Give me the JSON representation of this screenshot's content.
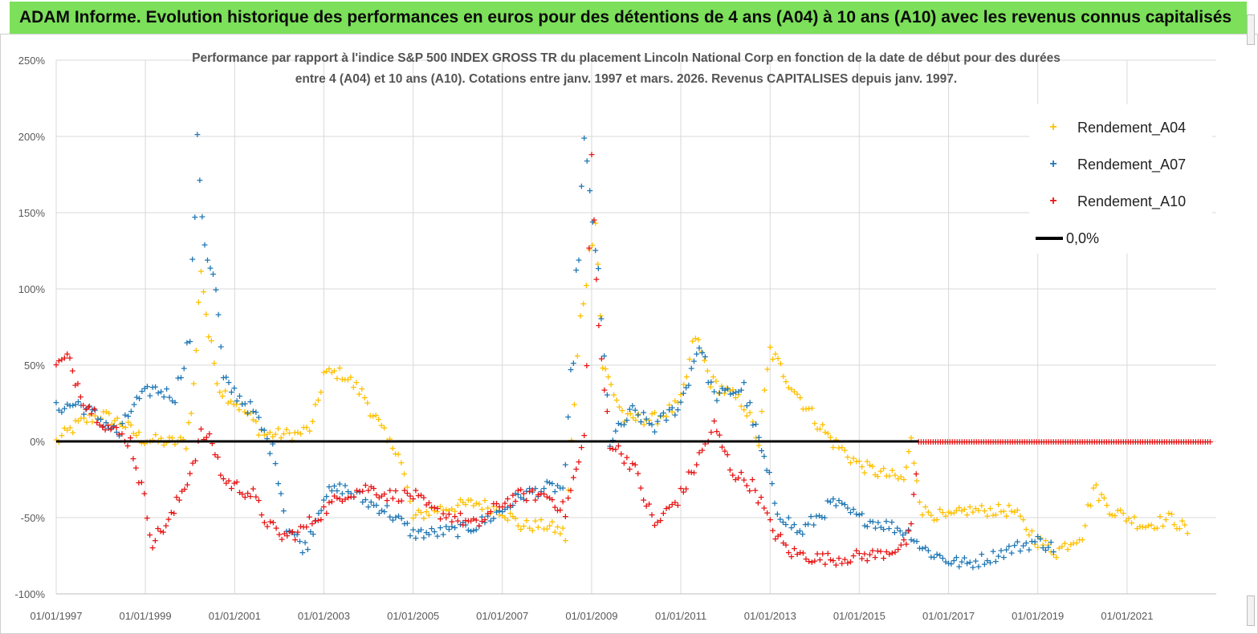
{
  "header": {
    "title": "ADAM Informe. Evolution historique des performances en euros pour des détentions de 4 ans (A04) à 10 ans (A10) avec les revenus connus capitalisés"
  },
  "chart_data": {
    "type": "scatter",
    "title_line1": "Performance par rapport à l'indice S&P 500 INDEX GROSS TR  du placement Lincoln National Corp en fonction de la date de début pour des durées",
    "title_line2": "entre 4 (A04) et 10 ans (A10). Cotations entre janv. 1997 et mars. 2026. Revenus CAPITALISES depuis janv. 1997.",
    "xlabel": "",
    "ylabel": "",
    "x_ticks": [
      "01/01/1997",
      "01/01/1999",
      "01/01/2001",
      "01/01/2003",
      "01/01/2005",
      "01/01/2007",
      "01/01/2009",
      "01/01/2011",
      "01/01/2013",
      "01/01/2015",
      "01/01/2017",
      "01/01/2019",
      "01/01/2021"
    ],
    "y_ticks": [
      "250%",
      "200%",
      "150%",
      "100%",
      "50%",
      "0%",
      "-50%",
      "-100%"
    ],
    "ylim": [
      -1.0,
      2.5
    ],
    "xlim": [
      "1997-01-01",
      "2023-01-01"
    ],
    "grid": true,
    "legend_position": "top-right",
    "series": [
      {
        "name": "Rendement_A04",
        "color": "#ffc000",
        "points": [
          [
            "1997-01",
            0.0
          ],
          [
            "1997-07",
            0.12
          ],
          [
            "1998-01",
            0.18
          ],
          [
            "1998-07",
            0.12
          ],
          [
            "1998-12",
            0.02
          ],
          [
            "1999-06",
            0.0
          ],
          [
            "1999-12",
            0.0
          ],
          [
            "2000-02",
            0.35
          ],
          [
            "2000-04",
            1.15
          ],
          [
            "2000-06",
            0.7
          ],
          [
            "2000-09",
            0.35
          ],
          [
            "2001-03",
            0.22
          ],
          [
            "2001-09",
            0.05
          ],
          [
            "2002-06",
            0.05
          ],
          [
            "2002-10",
            0.1
          ],
          [
            "2003-01",
            0.45
          ],
          [
            "2003-06",
            0.45
          ],
          [
            "2003-12",
            0.3
          ],
          [
            "2004-06",
            0.0
          ],
          [
            "2004-09",
            -0.05
          ],
          [
            "2005-01",
            -0.5
          ],
          [
            "2005-06",
            -0.45
          ],
          [
            "2006-01",
            -0.42
          ],
          [
            "2006-06",
            -0.4
          ],
          [
            "2007-01",
            -0.45
          ],
          [
            "2007-06",
            -0.55
          ],
          [
            "2008-01",
            -0.55
          ],
          [
            "2008-06",
            -0.6
          ],
          [
            "2008-10",
            0.8
          ],
          [
            "2009-02",
            1.5
          ],
          [
            "2009-04",
            0.5
          ],
          [
            "2009-10",
            0.15
          ],
          [
            "2010-06",
            0.15
          ],
          [
            "2011-01",
            0.25
          ],
          [
            "2011-05",
            0.7
          ],
          [
            "2011-09",
            0.4
          ],
          [
            "2012-06",
            0.25
          ],
          [
            "2012-10",
            0.0
          ],
          [
            "2013-01",
            0.6
          ],
          [
            "2013-06",
            0.4
          ],
          [
            "2014-01",
            0.15
          ],
          [
            "2014-06",
            0.0
          ],
          [
            "2015-01",
            -0.15
          ],
          [
            "2015-06",
            -0.2
          ],
          [
            "2016-01",
            -0.25
          ],
          [
            "2016-03",
            0.0
          ],
          [
            "2016-06",
            -0.45
          ],
          [
            "2017-01",
            -0.5
          ],
          [
            "2017-06",
            -0.45
          ],
          [
            "2018-01",
            -0.45
          ],
          [
            "2018-06",
            -0.45
          ],
          [
            "2019-01",
            -0.65
          ],
          [
            "2019-06",
            -0.72
          ],
          [
            "2020-01",
            -0.6
          ],
          [
            "2020-04",
            -0.3
          ],
          [
            "2020-09",
            -0.45
          ],
          [
            "2021-06",
            -0.55
          ],
          [
            "2022-01",
            -0.5
          ],
          [
            "2022-06",
            -0.6
          ]
        ]
      },
      {
        "name": "Rendement_A07",
        "color": "#1f77b4",
        "points": [
          [
            "1997-01",
            0.22
          ],
          [
            "1997-07",
            0.25
          ],
          [
            "1998-01",
            0.15
          ],
          [
            "1998-06",
            0.05
          ],
          [
            "1998-10",
            0.25
          ],
          [
            "1999-03",
            0.35
          ],
          [
            "1999-09",
            0.3
          ],
          [
            "2000-01",
            0.7
          ],
          [
            "2000-03",
            1.95
          ],
          [
            "2000-05",
            1.3
          ],
          [
            "2000-08",
            1.0
          ],
          [
            "2000-10",
            0.4
          ],
          [
            "2001-06",
            0.2
          ],
          [
            "2001-12",
            -0.1
          ],
          [
            "2002-03",
            -0.55
          ],
          [
            "2002-08",
            -0.7
          ],
          [
            "2003-01",
            -0.35
          ],
          [
            "2003-06",
            -0.3
          ],
          [
            "2004-01",
            -0.4
          ],
          [
            "2004-06",
            -0.45
          ],
          [
            "2005-01",
            -0.6
          ],
          [
            "2005-06",
            -0.6
          ],
          [
            "2006-01",
            -0.58
          ],
          [
            "2006-06",
            -0.55
          ],
          [
            "2007-01",
            -0.45
          ],
          [
            "2007-06",
            -0.35
          ],
          [
            "2008-01",
            -0.3
          ],
          [
            "2008-06",
            -0.3
          ],
          [
            "2008-11",
            1.95
          ],
          [
            "2009-02",
            1.3
          ],
          [
            "2009-06",
            0.0
          ],
          [
            "2009-12",
            0.2
          ],
          [
            "2010-06",
            0.1
          ],
          [
            "2011-01",
            0.25
          ],
          [
            "2011-06",
            0.65
          ],
          [
            "2011-10",
            0.3
          ],
          [
            "2012-06",
            0.35
          ],
          [
            "2012-10",
            0.0
          ],
          [
            "2013-03",
            -0.45
          ],
          [
            "2013-09",
            -0.6
          ],
          [
            "2014-06",
            -0.4
          ],
          [
            "2015-01",
            -0.5
          ],
          [
            "2015-09",
            -0.55
          ],
          [
            "2016-03",
            -0.6
          ],
          [
            "2016-06",
            -0.7
          ],
          [
            "2017-01",
            -0.78
          ],
          [
            "2017-06",
            -0.8
          ],
          [
            "2018-01",
            -0.75
          ],
          [
            "2018-06",
            -0.7
          ],
          [
            "2019-01",
            -0.65
          ],
          [
            "2019-06",
            -0.7
          ]
        ]
      },
      {
        "name": "Rendement_A10",
        "color": "#e81414",
        "points": [
          [
            "1997-01",
            0.5
          ],
          [
            "1997-04",
            0.55
          ],
          [
            "1997-09",
            0.25
          ],
          [
            "1998-03",
            0.1
          ],
          [
            "1998-09",
            0.0
          ],
          [
            "1998-12",
            -0.3
          ],
          [
            "1999-03",
            -0.65
          ],
          [
            "1999-08",
            -0.5
          ],
          [
            "2000-01",
            -0.2
          ],
          [
            "2000-04",
            0.05
          ],
          [
            "2000-07",
            0.0
          ],
          [
            "2000-10",
            -0.25
          ],
          [
            "2001-06",
            -0.35
          ],
          [
            "2001-09",
            -0.5
          ],
          [
            "2002-01",
            -0.62
          ],
          [
            "2002-06",
            -0.6
          ],
          [
            "2003-01",
            -0.45
          ],
          [
            "2003-06",
            -0.35
          ],
          [
            "2004-01",
            -0.3
          ],
          [
            "2004-06",
            -0.35
          ],
          [
            "2005-01",
            -0.35
          ],
          [
            "2005-06",
            -0.45
          ],
          [
            "2006-01",
            -0.5
          ],
          [
            "2006-06",
            -0.55
          ],
          [
            "2007-01",
            -0.4
          ],
          [
            "2007-06",
            -0.35
          ],
          [
            "2008-01",
            -0.35
          ],
          [
            "2008-06",
            -0.45
          ],
          [
            "2008-11",
            0.0
          ],
          [
            "2009-01",
            1.85
          ],
          [
            "2009-03",
            0.7
          ],
          [
            "2009-06",
            0.0
          ],
          [
            "2009-12",
            -0.15
          ],
          [
            "2010-06",
            -0.55
          ],
          [
            "2011-01",
            -0.35
          ],
          [
            "2011-06",
            -0.1
          ],
          [
            "2011-10",
            0.1
          ],
          [
            "2012-03",
            -0.2
          ],
          [
            "2012-09",
            -0.3
          ],
          [
            "2013-01",
            -0.55
          ],
          [
            "2013-06",
            -0.72
          ],
          [
            "2014-01",
            -0.76
          ],
          [
            "2014-06",
            -0.77
          ],
          [
            "2015-01",
            -0.75
          ],
          [
            "2015-06",
            -0.74
          ],
          [
            "2016-01",
            -0.68
          ],
          [
            "2016-03",
            -0.6
          ],
          [
            "2016-05",
            0.0
          ],
          [
            "2018-01",
            0.0
          ],
          [
            "2020-01",
            0.0
          ],
          [
            "2022-01",
            0.0
          ],
          [
            "2022-12",
            0.0
          ]
        ]
      }
    ],
    "reference_line": {
      "name": "0,0%",
      "value": 0.0,
      "color": "#000000"
    }
  }
}
